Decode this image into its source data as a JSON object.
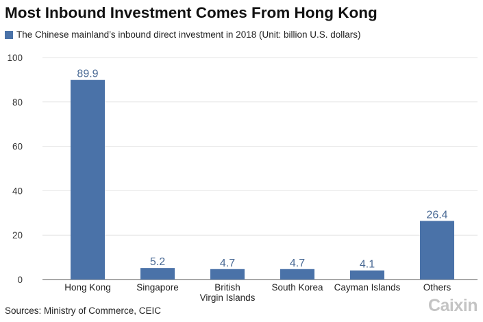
{
  "title": "Most Inbound Investment Comes From Hong Kong",
  "source": "Sources: Ministry of Commerce, CEIC",
  "logo_text": "Caixin",
  "colors": {
    "bar": "#4a72a8",
    "value_label": "#4a6a95",
    "grid": "#e4e4e4",
    "axis": "#555555"
  },
  "chart_data": {
    "type": "bar",
    "title": "Most Inbound Investment Comes From Hong Kong",
    "categories": [
      "Hong Kong",
      "Singapore",
      "British\nVirgin Islands",
      "South Korea",
      "Cayman Islands",
      "Others"
    ],
    "series": [
      {
        "name": "The Chinese mainland’s inbound direct investment in 2018 (Unit: billion U.S. dollars)",
        "values": [
          89.9,
          5.2,
          4.7,
          4.7,
          4.1,
          26.4
        ]
      }
    ],
    "value_labels": [
      "89.9",
      "5.2",
      "4.7",
      "4.7",
      "4.1",
      "26.4"
    ],
    "ylim": [
      0,
      100
    ],
    "yticks": [
      0,
      20,
      40,
      60,
      80,
      100
    ],
    "grid": true,
    "legend": "top-left",
    "xlabel": "",
    "ylabel": ""
  }
}
